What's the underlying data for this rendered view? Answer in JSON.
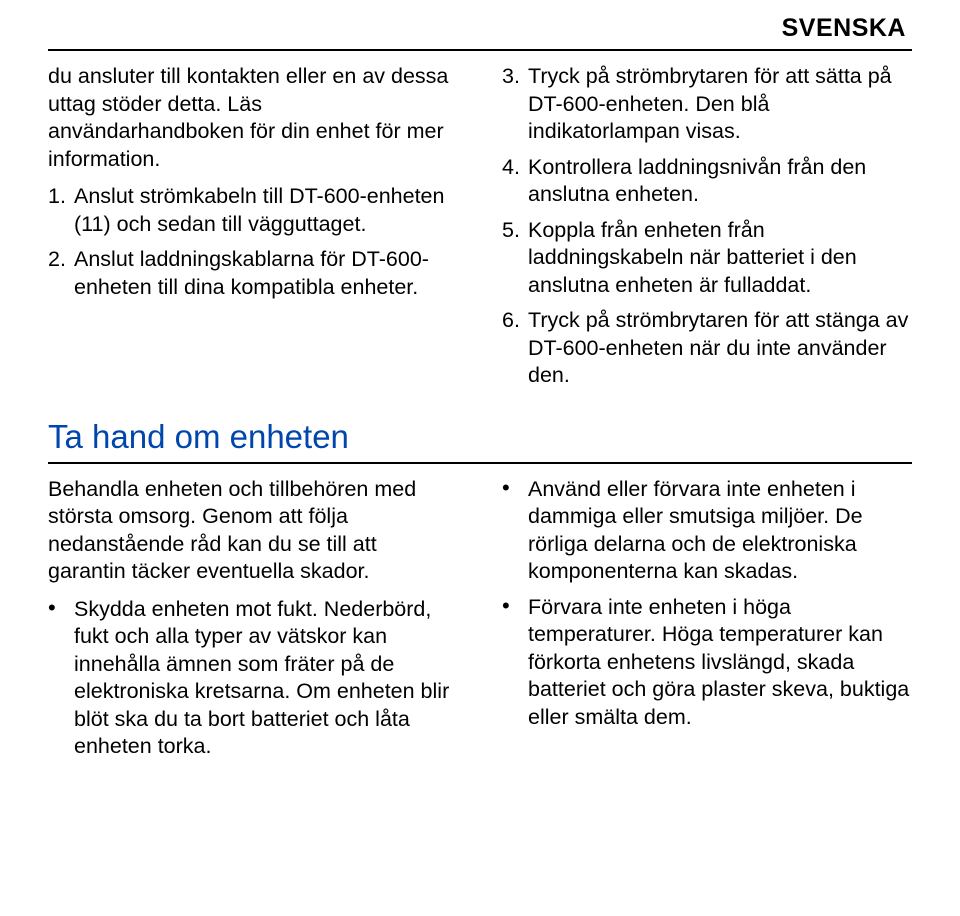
{
  "colors": {
    "heading": "#0046ad",
    "text": "#000000",
    "rule": "#000000",
    "background": "#ffffff"
  },
  "lang_label": "SVENSKA",
  "top": {
    "left_intro": "du ansluter till kontakten eller en av dessa uttag stöder detta. Läs användarhandboken för din enhet för mer information.",
    "left_steps": [
      {
        "n": "1.",
        "t": "Anslut strömkabeln till DT-600-enheten (11) och sedan till vägguttaget."
      },
      {
        "n": "2.",
        "t": "Anslut laddningskablarna för DT-600-enheten till dina kompatibla enheter."
      }
    ],
    "right_steps": [
      {
        "n": "3.",
        "t": "Tryck på strömbrytaren för att sätta på DT-600-enheten. Den blå indikatorlampan visas."
      },
      {
        "n": "4.",
        "t": "Kontrollera laddningsnivån från den anslutna enheten."
      },
      {
        "n": "5.",
        "t": "Koppla från enheten från laddningskabeln när batteriet i den anslutna enheten är fulladdat."
      },
      {
        "n": "6.",
        "t": "Tryck på strömbrytaren för att stänga av DT-600-enheten när du inte använder den."
      }
    ]
  },
  "section_heading": "Ta hand om enheten",
  "care": {
    "left_intro": "Behandla enheten och tillbehören med största omsorg. Genom att följa nedanstående råd kan du se till att garantin täcker eventuella skador.",
    "left_bullets": [
      "Skydda enheten mot fukt. Nederbörd, fukt och alla typer av vätskor kan innehålla ämnen som fräter på de elektroniska kretsarna. Om enheten blir blöt ska du ta bort batteriet och låta enheten torka."
    ],
    "right_bullets": [
      "Använd eller förvara inte enheten i dammiga eller smutsiga miljöer. De rörliga delarna och de elektroniska komponenterna kan skadas.",
      "Förvara inte enheten i höga temperaturer. Höga temperaturer kan förkorta enhetens livslängd, skada batteriet och göra plaster skeva, buktiga eller smälta dem."
    ]
  }
}
